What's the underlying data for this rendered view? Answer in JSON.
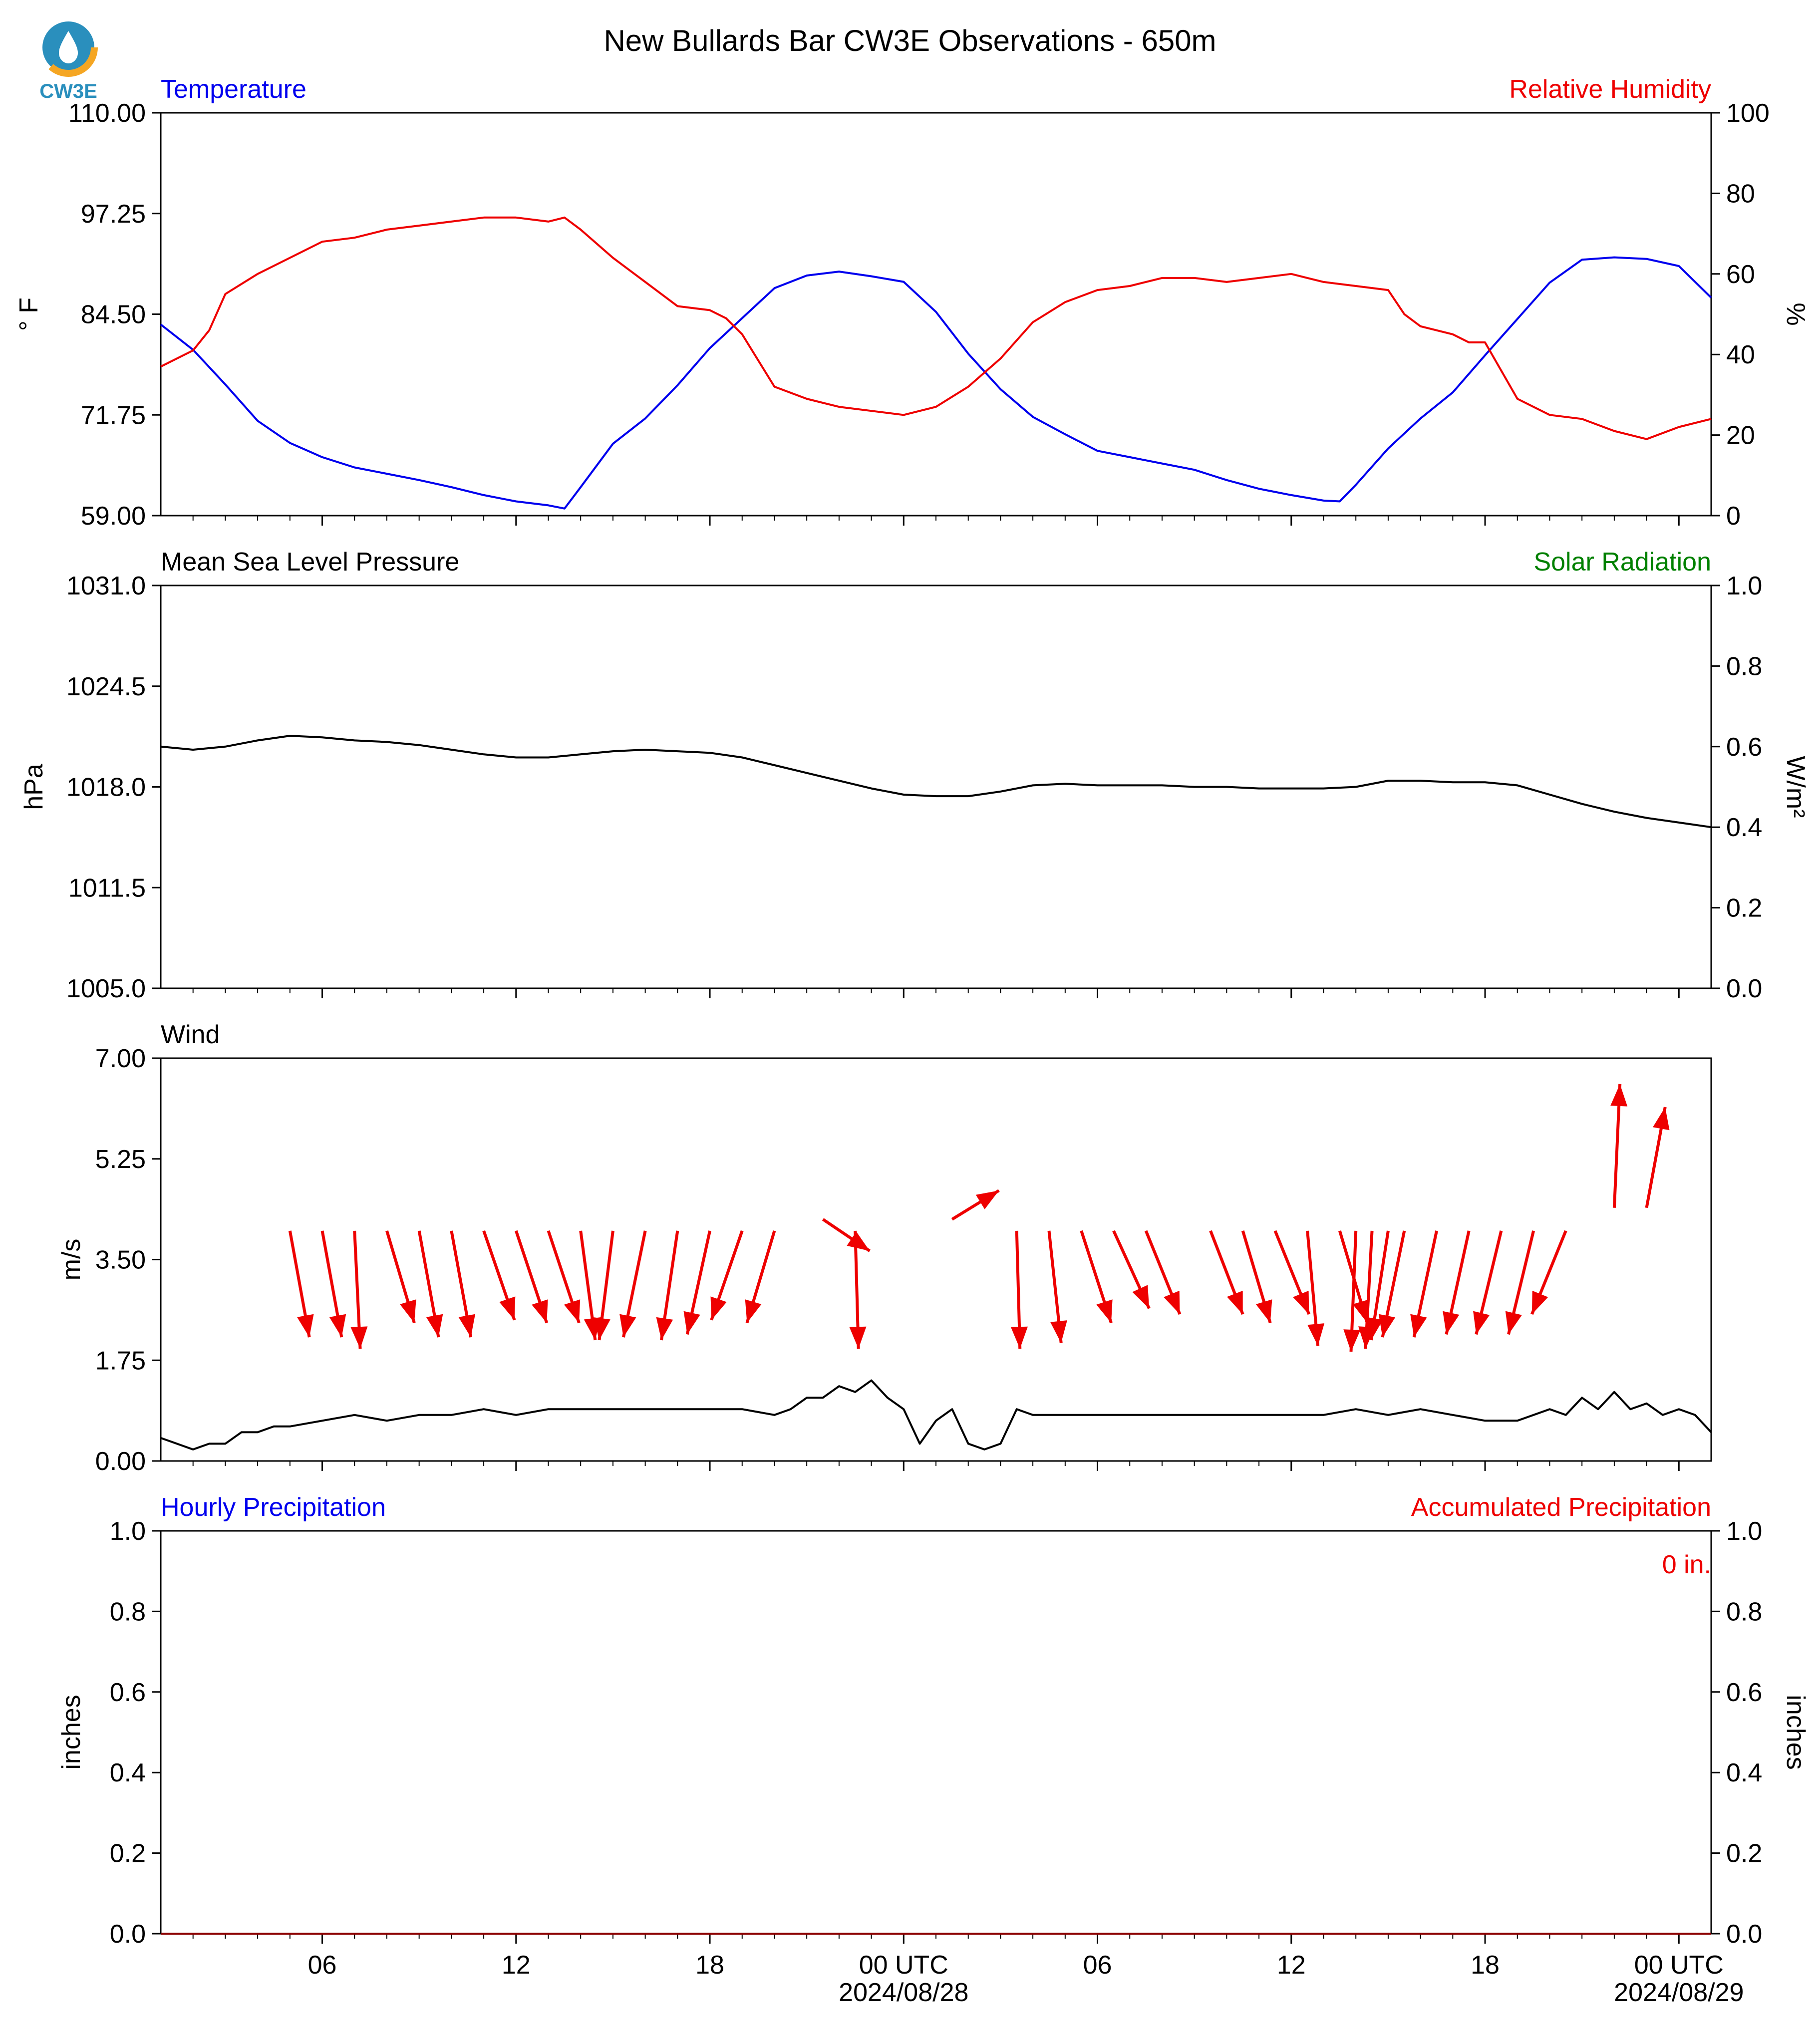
{
  "title": "New Bullards Bar CW3E Observations - 650m",
  "logo": {
    "text": "CW3E",
    "color": "#2a8fbd",
    "accent": "#f5a623"
  },
  "colors": {
    "blue": "#0000ee",
    "red": "#ee0000",
    "green": "#008000",
    "black": "#000000"
  },
  "x_axis": {
    "range_hours": [
      0,
      48
    ],
    "ticks": [
      {
        "h": 5,
        "label": "06"
      },
      {
        "h": 11,
        "label": "12"
      },
      {
        "h": 17,
        "label": "18"
      },
      {
        "h": 23,
        "label": "00 UTC"
      },
      {
        "h": 29,
        "label": "06"
      },
      {
        "h": 35,
        "label": "12"
      },
      {
        "h": 41,
        "label": "18"
      },
      {
        "h": 47,
        "label": "00 UTC"
      }
    ],
    "minor_ticks": [
      1,
      2,
      3,
      4,
      6,
      7,
      8,
      9,
      10,
      12,
      13,
      14,
      15,
      16,
      18,
      19,
      20,
      21,
      22,
      24,
      25,
      26,
      27,
      28,
      30,
      31,
      32,
      33,
      34,
      36,
      37,
      38,
      39,
      40,
      42,
      43,
      44,
      45,
      46
    ],
    "date_labels": [
      {
        "h": 23,
        "label": "2024/08/28"
      },
      {
        "h": 47,
        "label": "2024/08/29"
      }
    ]
  },
  "chart_data": [
    {
      "type": "line",
      "panel": "temperature-humidity",
      "left_title": "Temperature",
      "right_title": "Relative Humidity",
      "ylabel": "° F",
      "ylabel_right": "%",
      "ylim": [
        59.0,
        110.0
      ],
      "ylim_right": [
        0,
        100
      ],
      "yticks": [
        "59.00",
        "71.75",
        "84.50",
        "97.25",
        "110.00"
      ],
      "yticks_right": [
        "0",
        "20",
        "40",
        "60",
        "80",
        "100"
      ],
      "series": [
        {
          "name": "Temperature",
          "color": "#0000ee",
          "axis": "left",
          "x": [
            0,
            1,
            2,
            3,
            4,
            5,
            6,
            7,
            8,
            9,
            10,
            11,
            12,
            12.5,
            13,
            14,
            15,
            16,
            17,
            18,
            19,
            20,
            21,
            22,
            23,
            24,
            25,
            26,
            27,
            28,
            29,
            30,
            31,
            32,
            33,
            34,
            35,
            36,
            36.5,
            37,
            38,
            39,
            40,
            41,
            42,
            43,
            44,
            45,
            46,
            47,
            48
          ],
          "y": [
            83.2,
            80.0,
            75.6,
            71.0,
            68.2,
            66.4,
            65.1,
            64.3,
            63.5,
            62.6,
            61.6,
            60.8,
            60.3,
            59.9,
            62.6,
            68.1,
            71.3,
            75.5,
            80.2,
            84.0,
            87.8,
            89.4,
            89.9,
            89.3,
            88.6,
            84.8,
            79.5,
            75.0,
            71.5,
            69.3,
            67.2,
            66.4,
            65.6,
            64.8,
            63.5,
            62.4,
            61.6,
            60.9,
            60.8,
            62.9,
            67.5,
            71.3,
            74.6,
            79.3,
            83.9,
            88.5,
            91.4,
            91.7,
            91.5,
            90.6,
            86.6
          ]
        },
        {
          "name": "Relative Humidity",
          "color": "#ee0000",
          "axis": "right",
          "x": [
            0,
            1,
            1.5,
            2,
            3,
            4,
            5,
            6,
            7,
            8,
            9,
            10,
            11,
            12,
            12.5,
            13,
            14,
            15,
            16,
            17,
            17.5,
            18,
            19,
            20,
            21,
            22,
            23,
            24,
            25,
            26,
            27,
            28,
            29,
            30,
            31,
            32,
            33,
            34,
            35,
            35.5,
            36,
            37,
            38,
            38.5,
            39,
            40,
            40.5,
            41,
            42,
            43,
            44,
            45,
            46,
            47,
            48
          ],
          "y": [
            37,
            41,
            46,
            55,
            60,
            64,
            68,
            69,
            71,
            72,
            73,
            74,
            74,
            73,
            74,
            71,
            64,
            58,
            52,
            51,
            49,
            45,
            32,
            29,
            27,
            26,
            25,
            27,
            32,
            39,
            48,
            53,
            56,
            57,
            59,
            59,
            58,
            59,
            60,
            59,
            58,
            57,
            56,
            50,
            47,
            45,
            43,
            43,
            29,
            25,
            24,
            21,
            19,
            22,
            24
          ]
        }
      ]
    },
    {
      "type": "line",
      "panel": "pressure-solar",
      "left_title": "Mean Sea Level Pressure",
      "right_title": "Solar Radiation",
      "ylabel": "hPa",
      "ylabel_right": "W/m²",
      "ylim": [
        1005.0,
        1031.0
      ],
      "ylim_right": [
        0.0,
        1.0
      ],
      "yticks": [
        "1005.0",
        "1011.5",
        "1018.0",
        "1024.5",
        "1031.0"
      ],
      "yticks_right": [
        "0.0",
        "0.2",
        "0.4",
        "0.6",
        "0.8",
        "1.0"
      ],
      "series": [
        {
          "name": "Mean Sea Level Pressure",
          "color": "#000000",
          "axis": "left",
          "x": [
            0,
            1,
            2,
            3,
            4,
            5,
            6,
            7,
            8,
            9,
            10,
            11,
            12,
            13,
            14,
            15,
            16,
            17,
            18,
            19,
            20,
            21,
            22,
            23,
            24,
            25,
            26,
            27,
            28,
            29,
            30,
            31,
            32,
            33,
            34,
            35,
            36,
            37,
            38,
            39,
            40,
            41,
            42,
            43,
            44,
            45,
            46,
            47,
            48
          ],
          "y": [
            1020.6,
            1020.4,
            1020.6,
            1021.0,
            1021.3,
            1021.2,
            1021.0,
            1020.9,
            1020.7,
            1020.4,
            1020.1,
            1019.9,
            1019.9,
            1020.1,
            1020.3,
            1020.4,
            1020.3,
            1020.2,
            1019.9,
            1019.4,
            1018.9,
            1018.4,
            1017.9,
            1017.5,
            1017.4,
            1017.4,
            1017.7,
            1018.1,
            1018.2,
            1018.1,
            1018.1,
            1018.1,
            1018.0,
            1018.0,
            1017.9,
            1017.9,
            1017.9,
            1018.0,
            1018.4,
            1018.4,
            1018.3,
            1018.3,
            1018.1,
            1017.5,
            1016.9,
            1016.4,
            1016.0,
            1015.7,
            1015.4
          ]
        }
      ]
    },
    {
      "type": "line",
      "panel": "wind",
      "left_title": "Wind",
      "ylabel": "m/s",
      "ylim": [
        0.0,
        7.0
      ],
      "yticks": [
        "0.00",
        "1.75",
        "3.50",
        "5.25",
        "7.00"
      ],
      "series": [
        {
          "name": "Wind",
          "color": "#000000",
          "axis": "left",
          "x": [
            0,
            0.5,
            1,
            1.5,
            2,
            2.5,
            3,
            3.5,
            4,
            5,
            6,
            7,
            8,
            9,
            10,
            11,
            12,
            13,
            14,
            15,
            16,
            17,
            18,
            19,
            19.5,
            20,
            20.5,
            21,
            21.5,
            22,
            22.5,
            23,
            23.5,
            24,
            24.5,
            25,
            25.5,
            26,
            26.5,
            27,
            28,
            29,
            30,
            31,
            32,
            33,
            34,
            35,
            36,
            37,
            38,
            39,
            40,
            41,
            42,
            43,
            43.5,
            44,
            44.5,
            45,
            45.5,
            46,
            46.5,
            47,
            47.5,
            48
          ],
          "y": [
            0.4,
            0.3,
            0.2,
            0.3,
            0.3,
            0.5,
            0.5,
            0.6,
            0.6,
            0.7,
            0.8,
            0.7,
            0.8,
            0.8,
            0.9,
            0.8,
            0.9,
            0.9,
            0.9,
            0.9,
            0.9,
            0.9,
            0.9,
            0.8,
            0.9,
            1.1,
            1.1,
            1.3,
            1.2,
            1.4,
            1.1,
            0.9,
            0.3,
            0.7,
            0.9,
            0.3,
            0.2,
            0.3,
            0.9,
            0.8,
            0.8,
            0.8,
            0.8,
            0.8,
            0.8,
            0.8,
            0.8,
            0.8,
            0.8,
            0.9,
            0.8,
            0.9,
            0.8,
            0.7,
            0.7,
            0.9,
            0.8,
            1.1,
            0.9,
            1.2,
            0.9,
            1.0,
            0.8,
            0.9,
            0.8,
            0.5
          ]
        }
      ],
      "arrows": {
        "color": "#ee0000",
        "items": [
          {
            "x": 4.0,
            "y": 4.0,
            "dx": 1.2,
            "dy": -1.85
          },
          {
            "x": 5.0,
            "y": 4.0,
            "dx": 1.2,
            "dy": -1.85
          },
          {
            "x": 6.0,
            "y": 4.0,
            "dx": 0.35,
            "dy": -2.05
          },
          {
            "x": 7.0,
            "y": 4.0,
            "dx": 1.7,
            "dy": -1.6
          },
          {
            "x": 8.0,
            "y": 4.0,
            "dx": 1.2,
            "dy": -1.85
          },
          {
            "x": 9.0,
            "y": 4.0,
            "dx": 1.2,
            "dy": -1.85
          },
          {
            "x": 10.0,
            "y": 4.0,
            "dx": 1.9,
            "dy": -1.55
          },
          {
            "x": 11.0,
            "y": 4.0,
            "dx": 1.9,
            "dy": -1.6
          },
          {
            "x": 12.0,
            "y": 4.0,
            "dx": 1.9,
            "dy": -1.6
          },
          {
            "x": 13.0,
            "y": 4.0,
            "dx": 0.9,
            "dy": -1.9
          },
          {
            "x": 14.0,
            "y": 4.0,
            "dx": -0.85,
            "dy": -1.9
          },
          {
            "x": 15.0,
            "y": 4.0,
            "dx": -1.35,
            "dy": -1.85
          },
          {
            "x": 16.0,
            "y": 4.0,
            "dx": -1.0,
            "dy": -1.9
          },
          {
            "x": 17.0,
            "y": 4.0,
            "dx": -1.4,
            "dy": -1.8
          },
          {
            "x": 18.0,
            "y": 4.0,
            "dx": -1.9,
            "dy": -1.55
          },
          {
            "x": 19.0,
            "y": 4.0,
            "dx": -1.7,
            "dy": -1.6
          },
          {
            "x": 20.5,
            "y": 4.2,
            "dx": 2.9,
            "dy": -0.55
          },
          {
            "x": 21.5,
            "y": 4.0,
            "dx": 0.2,
            "dy": -2.05
          },
          {
            "x": 24.5,
            "y": 4.2,
            "dx": 2.9,
            "dy": 0.5
          },
          {
            "x": 26.5,
            "y": 4.0,
            "dx": 0.2,
            "dy": -2.05
          },
          {
            "x": 27.5,
            "y": 4.0,
            "dx": 0.75,
            "dy": -1.95
          },
          {
            "x": 28.5,
            "y": 4.0,
            "dx": 1.85,
            "dy": -1.6
          },
          {
            "x": 29.5,
            "y": 4.0,
            "dx": 2.2,
            "dy": -1.35
          },
          {
            "x": 30.5,
            "y": 4.0,
            "dx": 2.1,
            "dy": -1.45
          },
          {
            "x": 32.5,
            "y": 4.0,
            "dx": 2.0,
            "dy": -1.45
          },
          {
            "x": 33.5,
            "y": 4.0,
            "dx": 1.7,
            "dy": -1.6
          },
          {
            "x": 34.5,
            "y": 4.0,
            "dx": 2.1,
            "dy": -1.45
          },
          {
            "x": 35.5,
            "y": 4.0,
            "dx": 0.65,
            "dy": -2.0
          },
          {
            "x": 36.5,
            "y": 4.0,
            "dx": 1.7,
            "dy": -1.6
          },
          {
            "x": 37.0,
            "y": 4.0,
            "dx": -0.3,
            "dy": -2.1
          },
          {
            "x": 37.5,
            "y": 4.0,
            "dx": -0.4,
            "dy": -2.05
          },
          {
            "x": 38.0,
            "y": 4.0,
            "dx": -1.05,
            "dy": -1.9
          },
          {
            "x": 38.5,
            "y": 4.0,
            "dx": -1.35,
            "dy": -1.85
          },
          {
            "x": 39.5,
            "y": 4.0,
            "dx": -1.4,
            "dy": -1.85
          },
          {
            "x": 40.5,
            "y": 4.0,
            "dx": -1.4,
            "dy": -1.8
          },
          {
            "x": 41.5,
            "y": 4.0,
            "dx": -1.55,
            "dy": -1.8
          },
          {
            "x": 42.5,
            "y": 4.0,
            "dx": -1.55,
            "dy": -1.8
          },
          {
            "x": 43.5,
            "y": 4.0,
            "dx": -2.1,
            "dy": -1.45
          },
          {
            "x": 45.0,
            "y": 4.4,
            "dx": 0.35,
            "dy": 2.15
          },
          {
            "x": 46.0,
            "y": 4.4,
            "dx": 1.15,
            "dy": 1.75
          }
        ]
      }
    },
    {
      "type": "line",
      "panel": "precipitation",
      "left_title": "Hourly Precipitation",
      "right_title": "Accumulated Precipitation",
      "annotation": "0 in.",
      "ylabel": "inches",
      "ylabel_right": "inches",
      "ylim": [
        0.0,
        1.0
      ],
      "ylim_right": [
        0.0,
        1.0
      ],
      "yticks": [
        "0.0",
        "0.2",
        "0.4",
        "0.6",
        "0.8",
        "1.0"
      ],
      "yticks_right": [
        "0.0",
        "0.2",
        "0.4",
        "0.6",
        "0.8",
        "1.0"
      ],
      "series": [
        {
          "name": "Accumulated Precipitation",
          "color": "#8b0000",
          "axis": "right",
          "x": [
            0,
            48
          ],
          "y": [
            0,
            0
          ]
        }
      ]
    }
  ]
}
